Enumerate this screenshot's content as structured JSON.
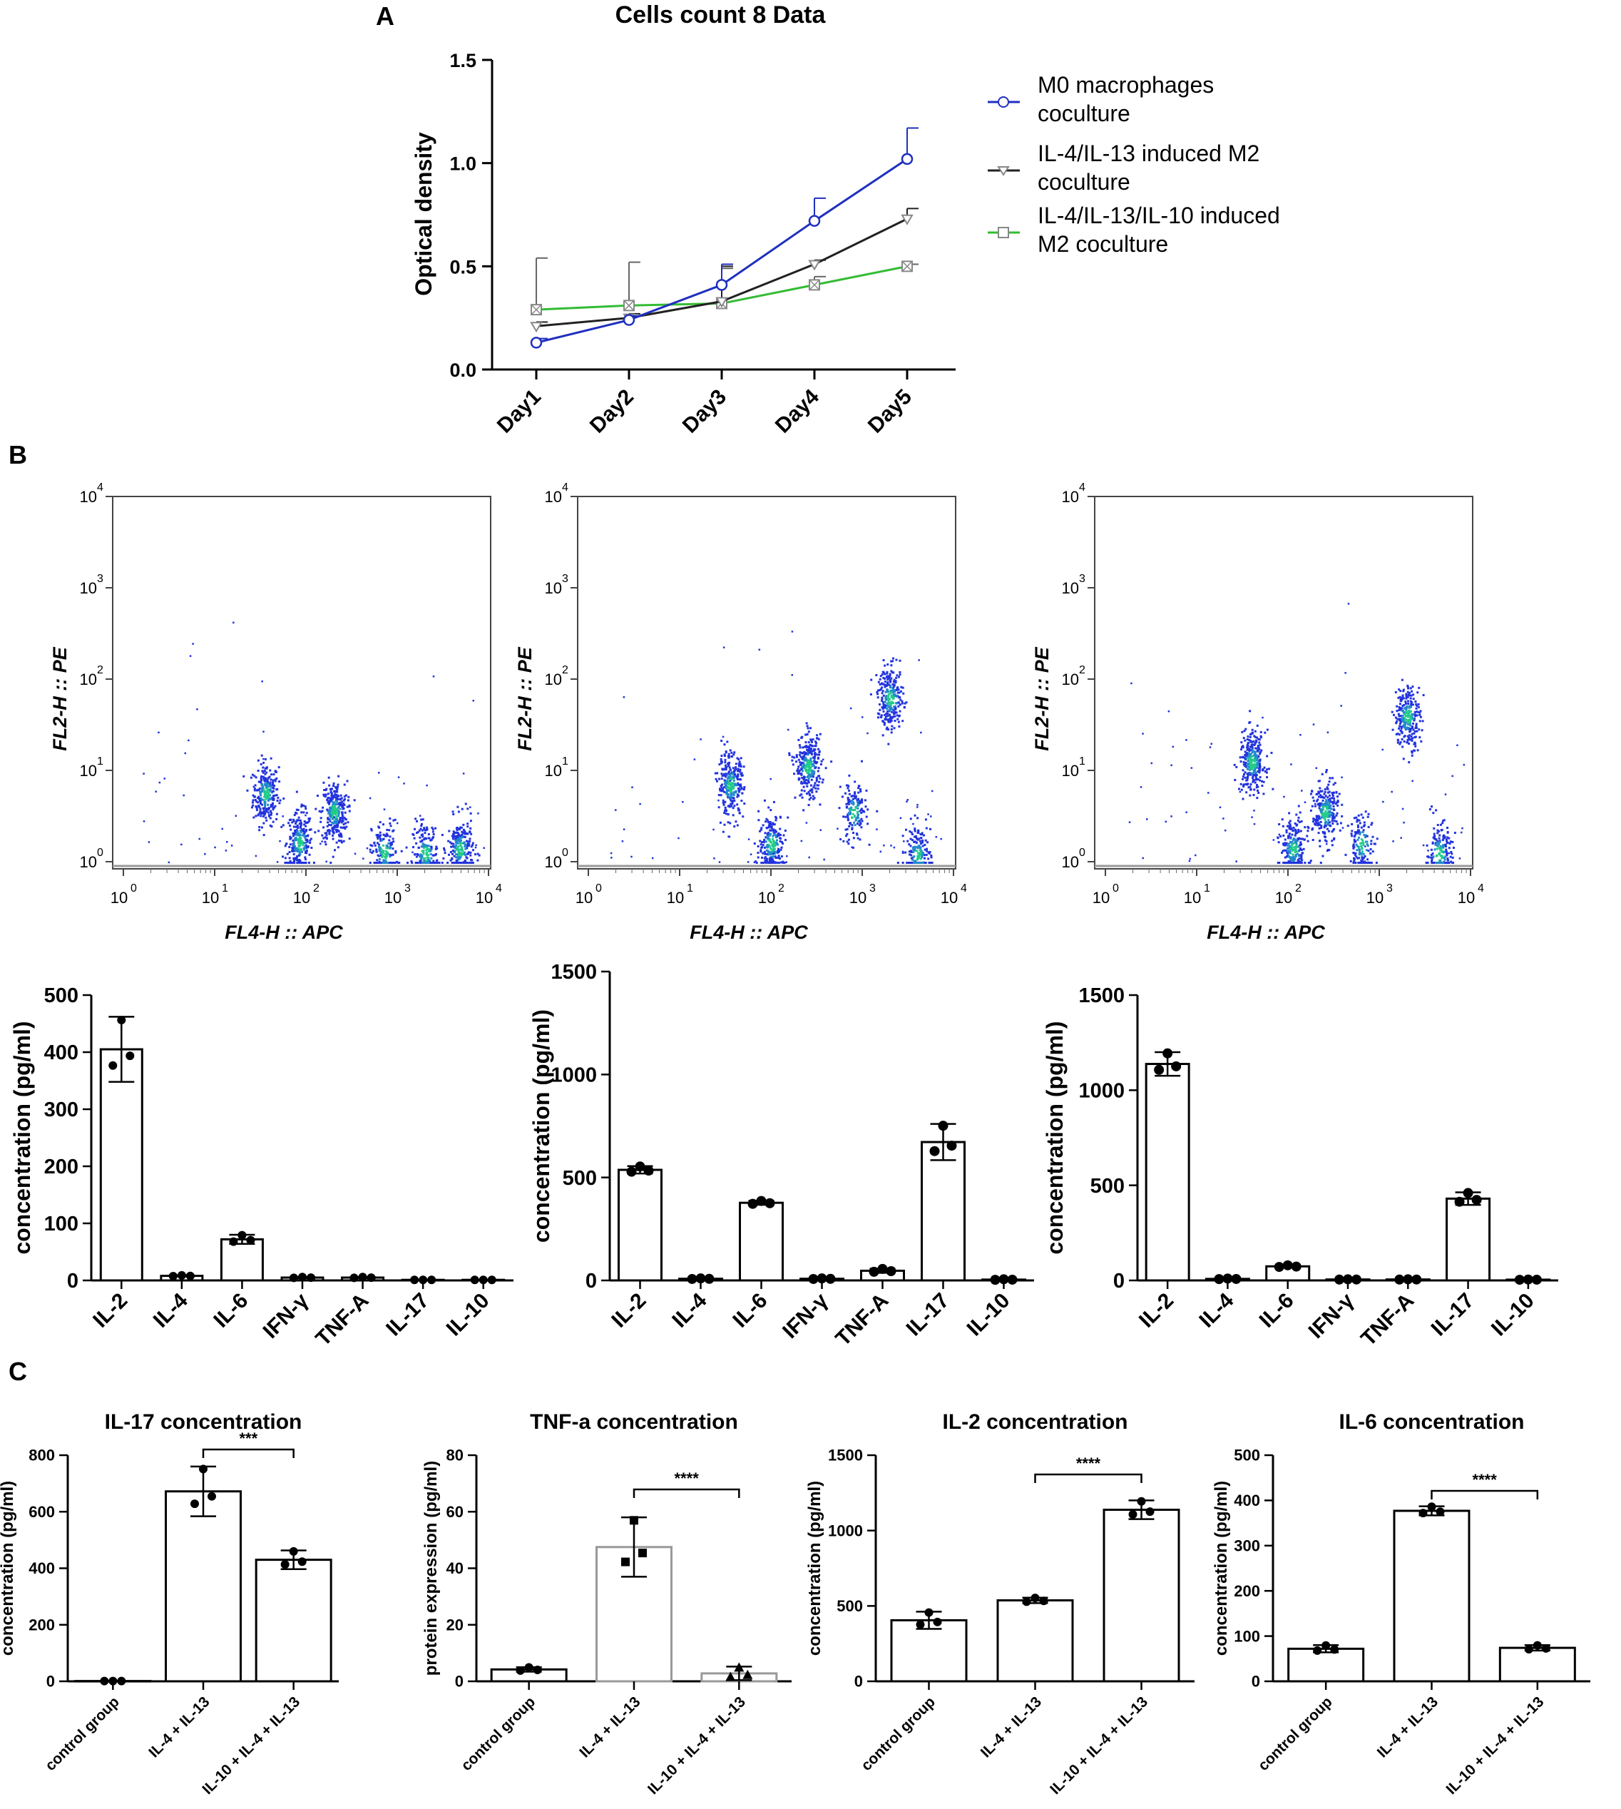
{
  "figure": {
    "panel_labels": [
      "A",
      "B",
      "C"
    ],
    "colors": {
      "axis": "#000000",
      "blue": "#1f2fbf",
      "black": "#222222",
      "green": "#33bb33",
      "gray": "#999999"
    }
  },
  "chart_data": [
    {
      "id": "A",
      "type": "line",
      "title": "Cells count 8 Data",
      "xlabel": "",
      "ylabel": "Optical density",
      "categories": [
        "Day1",
        "Day2",
        "Day3",
        "Day4",
        "Day5"
      ],
      "ylim": [
        0,
        1.5
      ],
      "yticks": [
        "0.0",
        "0.5",
        "1.0",
        "1.5"
      ],
      "series": [
        {
          "name": "M0 macrophages coculture",
          "color": "#1f2fbf",
          "marker": "circle",
          "values": [
            0.13,
            0.24,
            0.41,
            0.72,
            1.02
          ],
          "err": [
            0.02,
            0.02,
            0.1,
            0.11,
            0.15
          ]
        },
        {
          "name": "IL-4/IL-13 induced M2 coculture",
          "color": "#222222",
          "marker": "triangle",
          "values": [
            0.21,
            0.25,
            0.33,
            0.51,
            0.73
          ],
          "err": [
            0.02,
            0.02,
            0.17,
            0.02,
            0.05
          ]
        },
        {
          "name": "IL-4/IL-13/IL-10 induced M2 coculture",
          "color": "#33bb33",
          "marker": "boxx",
          "values": [
            0.29,
            0.31,
            0.32,
            0.41,
            0.5
          ],
          "err": [
            0.25,
            0.21,
            0.17,
            0.04,
            0.01
          ]
        }
      ]
    },
    {
      "id": "B-flow-1",
      "type": "scatter",
      "xlabel": "FL4-H :: APC",
      "ylabel": "FL2-H :: PE",
      "xticks_exp": [
        "0",
        "1",
        "2",
        "3",
        "4"
      ],
      "yticks_exp": [
        "0",
        "1",
        "2",
        "3",
        "4"
      ],
      "clusters": [
        {
          "x": 1.55,
          "y": 0.75,
          "n": 260
        },
        {
          "x": 1.92,
          "y": 0.22,
          "n": 240
        },
        {
          "x": 2.3,
          "y": 0.55,
          "n": 300
        },
        {
          "x": 2.85,
          "y": 0.12,
          "n": 140
        },
        {
          "x": 3.3,
          "y": 0.1,
          "n": 180
        },
        {
          "x": 3.68,
          "y": 0.15,
          "n": 220
        }
      ]
    },
    {
      "id": "B-flow-2",
      "type": "scatter",
      "xlabel": "FL4-H :: APC",
      "ylabel": "FL2-H :: PE",
      "xticks_exp": [
        "0",
        "1",
        "2",
        "3",
        "4"
      ],
      "yticks_exp": [
        "0",
        "1",
        "2",
        "3",
        "4"
      ],
      "clusters": [
        {
          "x": 1.55,
          "y": 0.85,
          "n": 280
        },
        {
          "x": 2.0,
          "y": 0.2,
          "n": 230
        },
        {
          "x": 2.4,
          "y": 1.05,
          "n": 290
        },
        {
          "x": 2.9,
          "y": 0.55,
          "n": 150
        },
        {
          "x": 3.3,
          "y": 1.8,
          "n": 260
        },
        {
          "x": 3.6,
          "y": 0.08,
          "n": 180
        }
      ]
    },
    {
      "id": "B-flow-3",
      "type": "scatter",
      "xlabel": "FL4-H :: APC",
      "ylabel": "FL2-H :: PE",
      "xticks_exp": [
        "0",
        "1",
        "2",
        "3",
        "4"
      ],
      "yticks_exp": [
        "0",
        "1",
        "2",
        "3",
        "4"
      ],
      "clusters": [
        {
          "x": 1.6,
          "y": 1.1,
          "n": 280
        },
        {
          "x": 2.05,
          "y": 0.15,
          "n": 220
        },
        {
          "x": 2.4,
          "y": 0.55,
          "n": 260
        },
        {
          "x": 2.8,
          "y": 0.2,
          "n": 140
        },
        {
          "x": 3.3,
          "y": 1.6,
          "n": 260
        },
        {
          "x": 3.65,
          "y": 0.1,
          "n": 170
        }
      ]
    },
    {
      "id": "B-bar-1",
      "type": "bar",
      "ylabel": "concentration (pg/ml)",
      "categories": [
        "IL-2",
        "IL-4",
        "IL-6",
        "IFN-γ",
        "TNF-A",
        "IL-17",
        "IL-10"
      ],
      "values": [
        405,
        8,
        72,
        5,
        5,
        1,
        1
      ],
      "err": [
        57,
        1,
        8,
        1,
        1,
        0,
        0
      ],
      "ylim": [
        0,
        500
      ],
      "yticks": [
        "0",
        "100",
        "200",
        "300",
        "400",
        "500"
      ]
    },
    {
      "id": "B-bar-2",
      "type": "bar",
      "ylabel": "concentration (pg/ml)",
      "categories": [
        "IL-2",
        "IL-4",
        "IL-6",
        "IFN-γ",
        "TNF-A",
        "IL-17",
        "IL-10"
      ],
      "values": [
        537,
        8,
        377,
        8,
        47,
        672,
        4
      ],
      "err": [
        18,
        2,
        10,
        2,
        10,
        88,
        2
      ],
      "ylim": [
        0,
        1500
      ],
      "yticks": [
        "0",
        "500",
        "1000",
        "1500"
      ]
    },
    {
      "id": "B-bar-3",
      "type": "bar",
      "ylabel": "concentration (pg/ml)",
      "categories": [
        "IL-2",
        "IL-4",
        "IL-6",
        "IFN-γ",
        "TNF-A",
        "IL-17",
        "IL-10"
      ],
      "values": [
        1138,
        8,
        74,
        5,
        5,
        430,
        4
      ],
      "err": [
        62,
        2,
        6,
        1,
        1,
        33,
        1
      ],
      "ylim": [
        0,
        1500
      ],
      "yticks": [
        "0",
        "500",
        "1000",
        "1500"
      ]
    },
    {
      "id": "C-1",
      "type": "bar",
      "title": "IL-17 concentration",
      "ylabel": "concentration (pg/ml)",
      "categories": [
        "control group",
        "IL-4 + IL-13",
        "IL-10 + IL-4 + IL-13"
      ],
      "values": [
        1,
        672,
        430
      ],
      "err": [
        0,
        88,
        33
      ],
      "ylim": [
        0,
        800
      ],
      "yticks": [
        "0",
        "200",
        "400",
        "600",
        "800"
      ],
      "significance": "***"
    },
    {
      "id": "C-2",
      "type": "bar",
      "title": "TNF-a concentration",
      "ylabel": "protein expression (pg/ml)",
      "categories": [
        "control group",
        "IL-4 + IL-13",
        "IL-10 + IL-4 + IL-13"
      ],
      "values": [
        4.2,
        47.5,
        2.8
      ],
      "err": [
        0.8,
        10.5,
        2.4
      ],
      "ylim": [
        0,
        80
      ],
      "yticks": [
        "0",
        "20",
        "40",
        "60",
        "80"
      ],
      "significance": "****"
    },
    {
      "id": "C-3",
      "type": "bar",
      "title": "IL-2 concentration",
      "ylabel": "concentration (pg/ml)",
      "categories": [
        "control group",
        "IL-4 + IL-13",
        "IL-10 + IL-4 + IL-13"
      ],
      "values": [
        405,
        537,
        1138
      ],
      "err": [
        57,
        18,
        62
      ],
      "ylim": [
        0,
        1500
      ],
      "yticks": [
        "0",
        "500",
        "1000",
        "1500"
      ],
      "significance": "****"
    },
    {
      "id": "C-4",
      "type": "bar",
      "title": "IL-6 concentration",
      "ylabel": "concentration (pg/ml)",
      "categories": [
        "control group",
        "IL-4 + IL-13",
        "IL-10 + IL-4 + IL-13"
      ],
      "values": [
        72,
        377,
        74
      ],
      "err": [
        8,
        10,
        6
      ],
      "ylim": [
        0,
        500
      ],
      "yticks": [
        "0",
        "100",
        "200",
        "300",
        "400",
        "500"
      ],
      "significance": "****"
    }
  ]
}
